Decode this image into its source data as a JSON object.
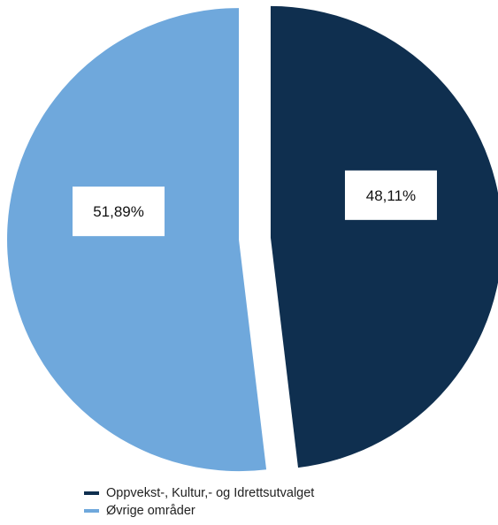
{
  "chart_data": {
    "type": "pie",
    "slices": [
      {
        "label": "Oppvekst-, Kultur,- og Idrettsutvalget",
        "value": 48.11,
        "display": "48,11%",
        "color": "#0f2f4f"
      },
      {
        "label": "Øvrige områder",
        "value": 51.89,
        "display": "51,89%",
        "color": "#6fa8dc"
      }
    ],
    "legend_position": "bottom-left"
  }
}
